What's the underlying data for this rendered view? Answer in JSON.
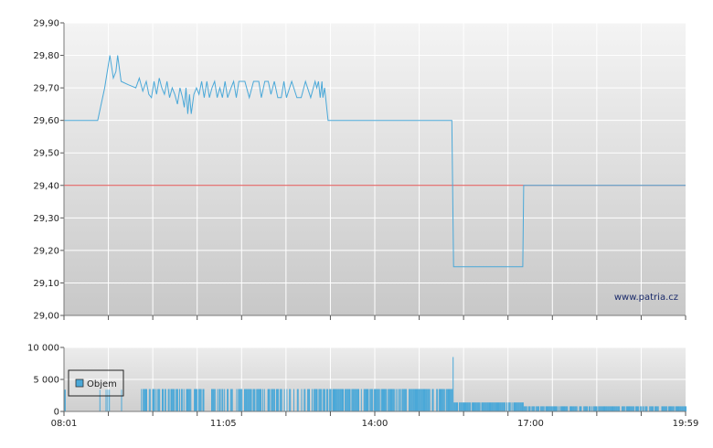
{
  "chart_data": [
    {
      "type": "line",
      "y_ticks": [
        "29,00",
        "29,10",
        "29,20",
        "29,30",
        "29,40",
        "29,50",
        "29,60",
        "29,70",
        "29,80",
        "29,90"
      ],
      "ylim": [
        29.0,
        29.9
      ],
      "x_range_minutes": [
        481,
        1199
      ],
      "reference_line": {
        "value": 29.4,
        "color": "#e05050"
      },
      "series": [
        {
          "color": "#4aa8d8",
          "x": [
            "08:01",
            "08:40",
            "08:48",
            "08:54",
            "08:58",
            "09:01",
            "09:03",
            "09:07",
            "09:15",
            "09:24",
            "09:28",
            "09:32",
            "09:36",
            "09:39",
            "09:42",
            "09:45",
            "09:48",
            "09:51",
            "09:54",
            "09:57",
            "10:00",
            "10:03",
            "10:06",
            "10:09",
            "10:12",
            "10:15",
            "10:18",
            "10:20",
            "10:22",
            "10:24",
            "10:26",
            "10:28",
            "10:31",
            "10:34",
            "10:37",
            "10:40",
            "10:43",
            "10:46",
            "10:49",
            "10:52",
            "10:55",
            "10:58",
            "11:01",
            "11:04",
            "11:07",
            "11:10",
            "11:14",
            "11:17",
            "11:20",
            "11:23",
            "11:27",
            "11:30",
            "11:35",
            "11:40",
            "11:46",
            "11:49",
            "11:53",
            "11:57",
            "12:00",
            "12:04",
            "12:08",
            "12:12",
            "12:15",
            "12:18",
            "12:24",
            "12:30",
            "12:35",
            "12:40",
            "12:46",
            "12:51",
            "12:53",
            "12:55",
            "12:57",
            "12:59",
            "13:00",
            "13:02",
            "13:06",
            "13:09",
            "13:12",
            "15:29",
            "15:31",
            "16:51",
            "16:52",
            "19:59"
          ],
          "y": [
            29.6,
            29.6,
            29.7,
            29.8,
            29.73,
            29.75,
            29.8,
            29.72,
            29.71,
            29.7,
            29.73,
            29.69,
            29.72,
            29.68,
            29.67,
            29.72,
            29.68,
            29.73,
            29.7,
            29.68,
            29.72,
            29.67,
            29.7,
            29.68,
            29.65,
            29.7,
            29.67,
            29.64,
            29.7,
            29.62,
            29.68,
            29.62,
            29.68,
            29.7,
            29.68,
            29.72,
            29.67,
            29.72,
            29.67,
            29.7,
            29.72,
            29.67,
            29.7,
            29.67,
            29.72,
            29.67,
            29.7,
            29.72,
            29.67,
            29.72,
            29.72,
            29.72,
            29.67,
            29.72,
            29.72,
            29.67,
            29.72,
            29.72,
            29.68,
            29.72,
            29.67,
            29.67,
            29.72,
            29.67,
            29.72,
            29.67,
            29.67,
            29.72,
            29.67,
            29.72,
            29.7,
            29.72,
            29.67,
            29.72,
            29.67,
            29.7,
            29.6,
            29.6,
            29.6,
            29.6,
            29.15,
            29.15,
            29.4,
            29.4
          ]
        }
      ],
      "watermark": "www.patria.cz"
    },
    {
      "type": "bar",
      "y_ticks": [
        "0",
        "5 000",
        "10 000"
      ],
      "ylim": [
        0,
        10000
      ],
      "x_ticks": [
        "08:01",
        "11:05",
        "14:00",
        "17:00",
        "19:59"
      ],
      "legend": {
        "label": "Objem",
        "position": "left"
      },
      "series": [
        {
          "name": "Objem",
          "color": "#4aa8d8"
        }
      ]
    }
  ]
}
